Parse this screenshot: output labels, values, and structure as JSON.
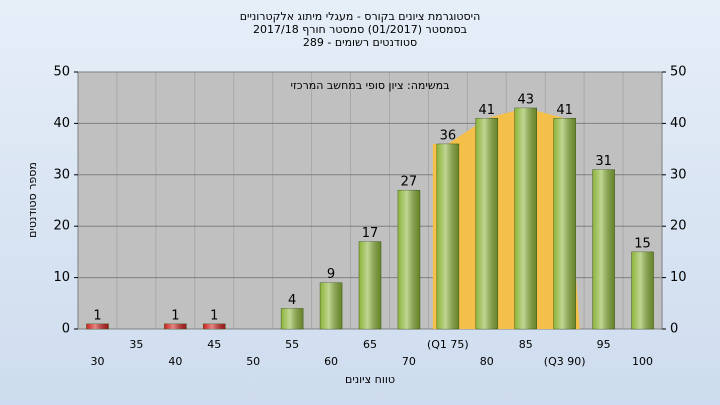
{
  "chart_data": {
    "type": "bar",
    "title": "היסטוגרמת ציונים בקורס - מעגלי מיתוג אלקטרוניים",
    "subtitle": "בסמסטר (01/2017) סמסטר חורף 2017/18",
    "subtitle2": "סטודנטים רשומים - 289",
    "annotation": "במשימה: ציון סופי במחשב המרכזי",
    "ylabel": "מספר סטודנטים",
    "xlabel": "טווח ציונים",
    "categories": [
      "30",
      "35",
      "40",
      "45",
      "50",
      "55",
      "60",
      "65",
      "70",
      "(Q1 75)",
      "80",
      "85",
      "(Q3 90)",
      "95",
      "100"
    ],
    "values": [
      1,
      null,
      1,
      1,
      null,
      4,
      9,
      17,
      27,
      36,
      41,
      43,
      41,
      31,
      15
    ],
    "colors": [
      "#d02020",
      "#d02020",
      "#d02020",
      "#d02020",
      "#d02020",
      "#8cb43a",
      "#8cb43a",
      "#8cb43a",
      "#8cb43a",
      "#8cb43a",
      "#8cb43a",
      "#8cb43a",
      "#8cb43a",
      "#8cb43a",
      "#8cb43a"
    ],
    "quartile_color": "#f5c04a",
    "ylim": [
      0,
      50
    ],
    "yticks": [
      0,
      10,
      20,
      30,
      40,
      50
    ],
    "grid": true
  }
}
